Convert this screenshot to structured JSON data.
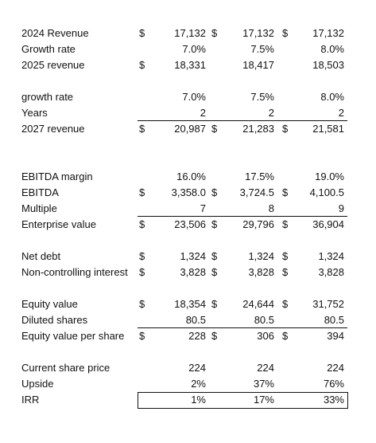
{
  "rows": {
    "revenue_2024": {
      "label": "2024 Revenue",
      "cur": [
        "$",
        "$",
        "$"
      ],
      "values": [
        "17,132",
        "17,132",
        "17,132"
      ]
    },
    "growth_rate": {
      "label": "Growth rate",
      "cur": [
        "",
        "",
        ""
      ],
      "values": [
        "7.0%",
        "7.5%",
        "8.0%"
      ]
    },
    "revenue_2025": {
      "label": "2025 revenue",
      "cur": [
        "$",
        "",
        ""
      ],
      "values": [
        "18,331",
        "18,417",
        "18,503"
      ]
    },
    "growth_rate2": {
      "label": "growth rate",
      "cur": [
        "",
        "",
        ""
      ],
      "values": [
        "7.0%",
        "7.5%",
        "8.0%"
      ]
    },
    "years": {
      "label": "Years",
      "cur": [
        "",
        "",
        ""
      ],
      "values": [
        "2",
        "2",
        "2"
      ]
    },
    "revenue_2027": {
      "label": "2027 revenue",
      "cur": [
        "$",
        "$",
        "$"
      ],
      "values": [
        "20,987",
        "21,283",
        "21,581"
      ]
    },
    "ebitda_margin": {
      "label": "EBITDA margin",
      "cur": [
        "",
        "",
        ""
      ],
      "values": [
        "16.0%",
        "17.5%",
        "19.0%"
      ]
    },
    "ebitda": {
      "label": "EBITDA",
      "cur": [
        "$",
        "$",
        "$"
      ],
      "values": [
        "3,358.0",
        "3,724.5",
        "4,100.5"
      ]
    },
    "multiple": {
      "label": "Multiple",
      "cur": [
        "",
        "",
        ""
      ],
      "values": [
        "7",
        "8",
        "9"
      ]
    },
    "enterprise_value": {
      "label": "Enterprise value",
      "cur": [
        "$",
        "$",
        "$"
      ],
      "values": [
        "23,506",
        "29,796",
        "36,904"
      ]
    },
    "net_debt": {
      "label": "Net debt",
      "cur": [
        "$",
        "$",
        "$"
      ],
      "values": [
        "1,324",
        "1,324",
        "1,324"
      ]
    },
    "nci": {
      "label": "Non-controlling interest",
      "cur": [
        "$",
        "$",
        "$"
      ],
      "values": [
        "3,828",
        "3,828",
        "3,828"
      ]
    },
    "equity_value": {
      "label": "Equity value",
      "cur": [
        "$",
        "$",
        "$"
      ],
      "values": [
        "18,354",
        "24,644",
        "31,752"
      ]
    },
    "diluted_shares": {
      "label": "Diluted shares",
      "cur": [
        "",
        "",
        ""
      ],
      "values": [
        "80.5",
        "80.5",
        "80.5"
      ]
    },
    "equity_per_share": {
      "label": "Equity value per share",
      "cur": [
        "$",
        "$",
        "$"
      ],
      "values": [
        "228",
        "306",
        "394"
      ]
    },
    "share_price": {
      "label": "Current share price",
      "cur": [
        "",
        "",
        ""
      ],
      "values": [
        "224",
        "224",
        "224"
      ]
    },
    "upside": {
      "label": "Upside",
      "cur": [
        "",
        "",
        ""
      ],
      "values": [
        "2%",
        "37%",
        "76%"
      ]
    },
    "irr": {
      "label": "IRR",
      "cur": [
        "",
        "",
        ""
      ],
      "values": [
        "1%",
        "17%",
        "33%"
      ]
    }
  }
}
